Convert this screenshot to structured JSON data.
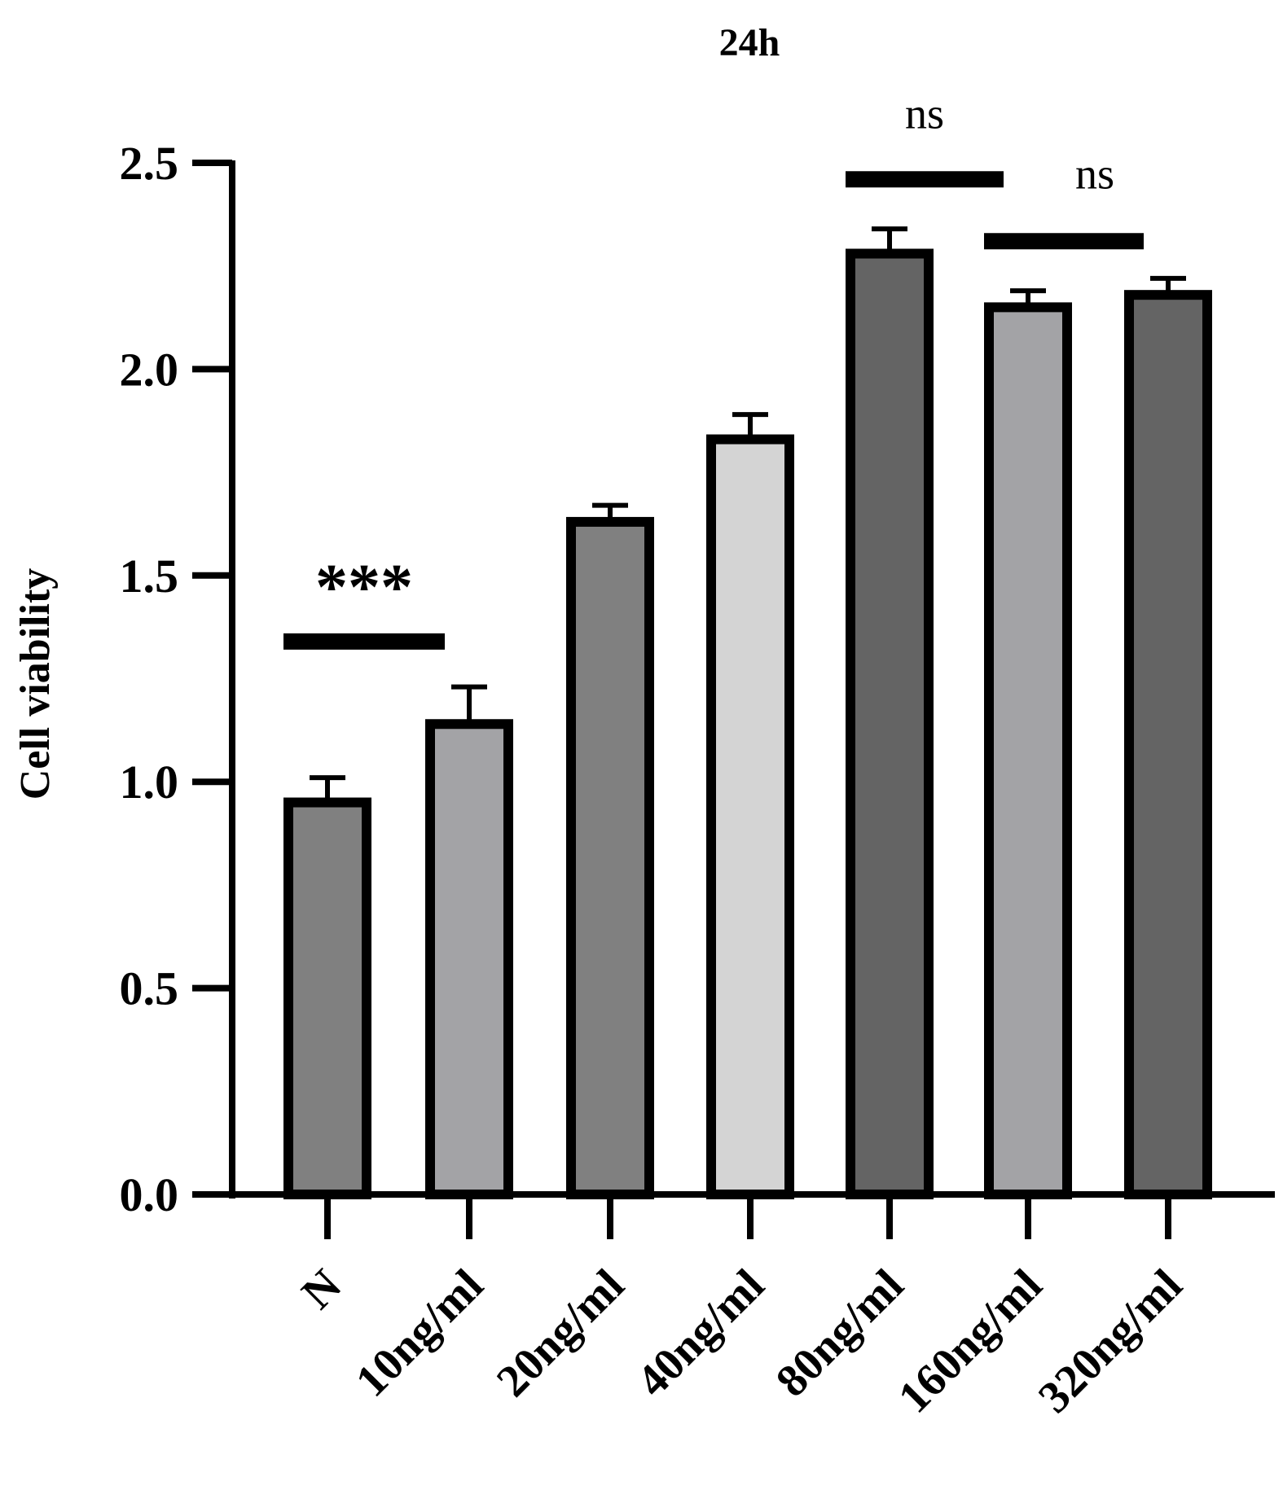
{
  "chart_data": {
    "type": "bar",
    "title": "24h",
    "xlabel": "",
    "ylabel": "Cell viability",
    "ylim": [
      0,
      2.5
    ],
    "yticks": [
      "0.0",
      "0.5",
      "1.0",
      "1.5",
      "2.0",
      "2.5"
    ],
    "categories": [
      "N",
      "10ng/ml",
      "20ng/ml",
      "40ng/ml",
      "80ng/ml",
      "160ng/ml",
      "320ng/ml"
    ],
    "values": [
      0.95,
      1.14,
      1.63,
      1.83,
      2.28,
      2.15,
      2.18
    ],
    "errors": [
      0.06,
      0.09,
      0.04,
      0.06,
      0.06,
      0.04,
      0.04
    ],
    "bar_colors": [
      "#808080",
      "#a3a3a6",
      "#808080",
      "#d4d4d4",
      "#646464",
      "#a3a3a6",
      "#646464"
    ],
    "grid": false,
    "significance": [
      {
        "from": 0,
        "to": 1,
        "label": "***",
        "y": 1.34
      },
      {
        "from": 4,
        "to": 5,
        "label": "ns",
        "y": 2.46
      },
      {
        "from": 5,
        "to": 6,
        "label": "ns",
        "y": 2.31
      }
    ]
  }
}
